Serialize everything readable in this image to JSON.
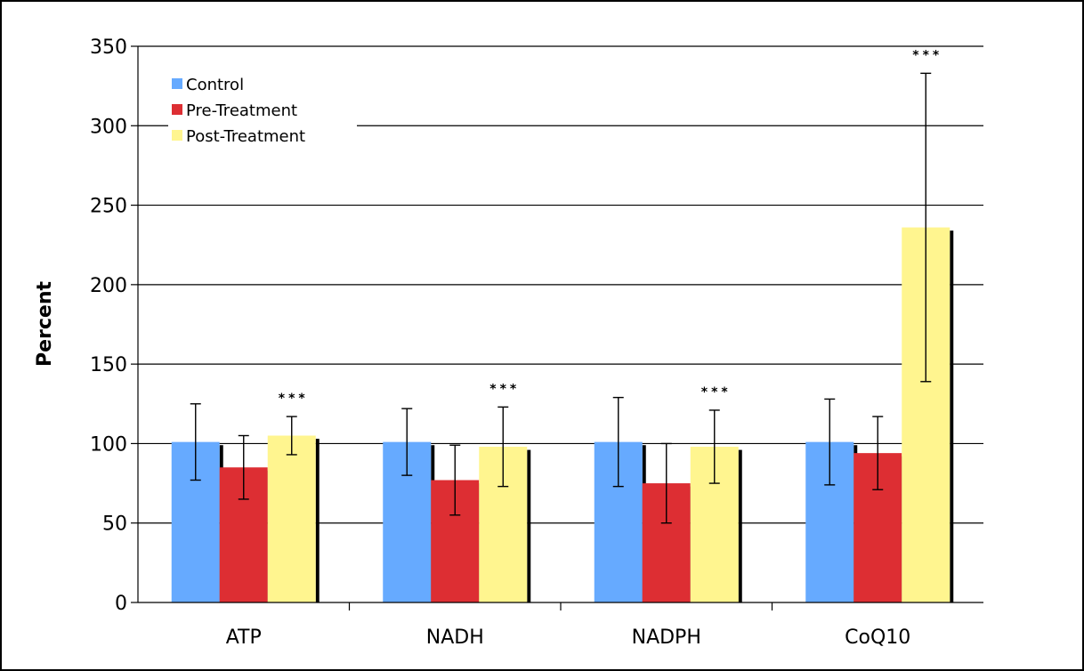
{
  "chart_data": {
    "type": "bar",
    "ylabel": "Percent",
    "ylim": [
      0,
      350
    ],
    "yticks": [
      0,
      50,
      100,
      150,
      200,
      250,
      300,
      350
    ],
    "grid": true,
    "legend_position": "top-left",
    "categories": [
      "ATP",
      "NADH",
      "NADPH",
      "CoQ10"
    ],
    "series": [
      {
        "name": "Control",
        "color": "#66aaff",
        "values": [
          101,
          101,
          101,
          101
        ],
        "errors": [
          24,
          21,
          28,
          27
        ]
      },
      {
        "name": "Pre-Treatment",
        "color": "#dd2e33",
        "values": [
          85,
          77,
          75,
          94
        ],
        "errors": [
          20,
          22,
          25,
          23
        ]
      },
      {
        "name": "Post-Treatment",
        "color": "#fff58f",
        "values": [
          105,
          98,
          98,
          236
        ],
        "errors": [
          12,
          25,
          23,
          97
        ]
      }
    ],
    "annotations": [
      {
        "category": "ATP",
        "series": "Post-Treatment",
        "text": "***"
      },
      {
        "category": "NADH",
        "series": "Post-Treatment",
        "text": "***"
      },
      {
        "category": "NADPH",
        "series": "Post-Treatment",
        "text": "***"
      },
      {
        "category": "CoQ10",
        "series": "Post-Treatment",
        "text": "***"
      }
    ]
  }
}
